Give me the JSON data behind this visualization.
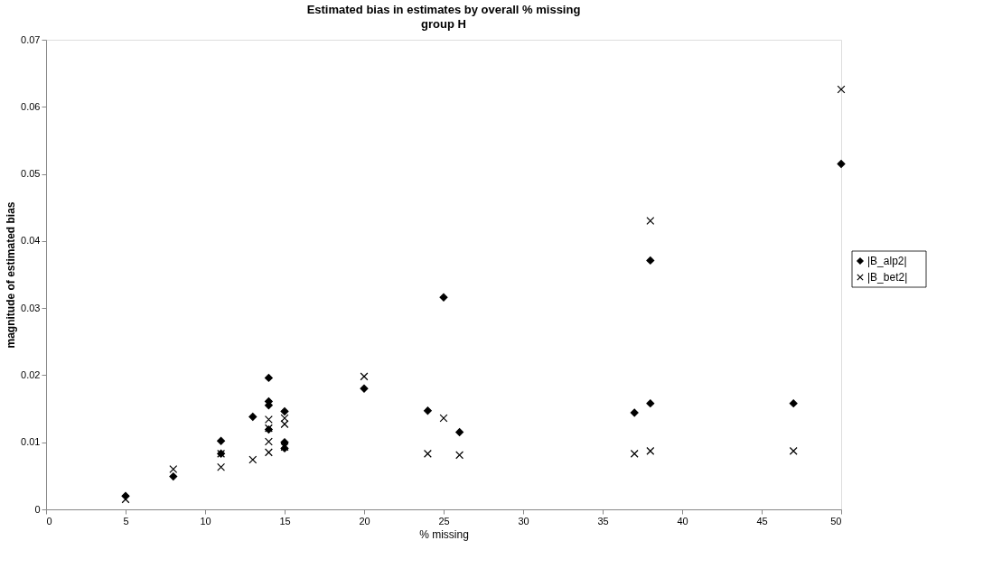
{
  "chart_data": {
    "type": "scatter",
    "title": "Estimated bias in estimates by overall % missing",
    "subtitle": "group H",
    "xlabel": "% missing",
    "ylabel": "magnitude of estimated bias",
    "xlim": [
      0,
      50
    ],
    "xticks": [
      0,
      5,
      10,
      15,
      20,
      25,
      30,
      35,
      40,
      45,
      50
    ],
    "ylim": [
      0,
      0.07
    ],
    "yticks": [
      0,
      0.01,
      0.02,
      0.03,
      0.04,
      0.05,
      0.06,
      0.07
    ],
    "grid": false,
    "legend": "right",
    "series": [
      {
        "name": "|B_alp2|",
        "color": "#000000",
        "marker": "diamond",
        "x": [
          5,
          8,
          11,
          11,
          13,
          14,
          14,
          14,
          14,
          15,
          15,
          15,
          20,
          24,
          25,
          26,
          37,
          38,
          38,
          47,
          50
        ],
        "values": [
          0.002,
          0.0049,
          0.0102,
          0.0083,
          0.0138,
          0.0196,
          0.0161,
          0.0155,
          0.0119,
          0.0146,
          0.01,
          0.0091,
          0.018,
          0.0147,
          0.0316,
          0.0115,
          0.0144,
          0.0158,
          0.0371,
          0.0158,
          0.0515
        ]
      },
      {
        "name": "|B_bet2|",
        "color": "#000000",
        "marker": "cross",
        "x": [
          5,
          8,
          11,
          11,
          13,
          14,
          14,
          14,
          14,
          15,
          15,
          15,
          20,
          24,
          25,
          26,
          37,
          38,
          38,
          47,
          50
        ],
        "values": [
          0.0015,
          0.006,
          0.0083,
          0.0063,
          0.0074,
          0.0134,
          0.0121,
          0.0101,
          0.0085,
          0.0136,
          0.0127,
          0.0093,
          0.0198,
          0.0083,
          0.0136,
          0.0081,
          0.0083,
          0.0087,
          0.043,
          0.0087,
          0.0626
        ]
      }
    ]
  }
}
